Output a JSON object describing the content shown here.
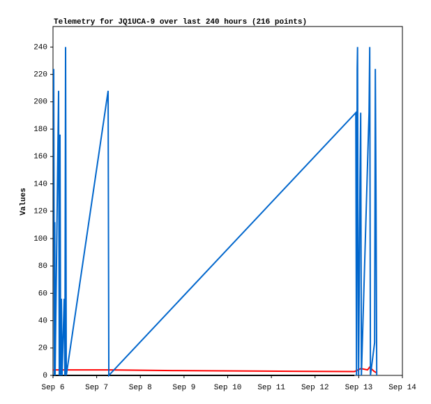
{
  "chart_data": {
    "type": "line",
    "title": "Telemetry for JQ1UCA-9 over last 240 hours (216 points)",
    "y_label": "Values",
    "xlim": [
      6,
      14
    ],
    "xticks": [
      {
        "value": 6,
        "label": "Sep 6"
      },
      {
        "value": 7,
        "label": "Sep 7"
      },
      {
        "value": 8,
        "label": "Sep 8"
      },
      {
        "value": 9,
        "label": "Sep 9"
      },
      {
        "value": 10,
        "label": "Sep 10"
      },
      {
        "value": 11,
        "label": "Sep 11"
      },
      {
        "value": 12,
        "label": "Sep 12"
      },
      {
        "value": 13,
        "label": "Sep 13"
      },
      {
        "value": 14,
        "label": "Sep 14"
      }
    ],
    "ylim": [
      0,
      255
    ],
    "yticks": [
      0,
      20,
      40,
      60,
      80,
      100,
      120,
      140,
      160,
      180,
      200,
      220,
      240
    ],
    "series": [
      {
        "color": "#000000",
        "x": [
          6.0,
          12.9
        ],
        "values": [
          0,
          0
        ]
      },
      {
        "color": "#ff0000",
        "x": [
          6.0,
          7.3,
          8.75,
          11.5,
          12.9,
          13.05,
          13.2,
          13.25,
          13.35,
          13.4
        ],
        "values": [
          4,
          4,
          3.5,
          3,
          2.8,
          5,
          4,
          6,
          3,
          2
        ]
      },
      {
        "color": "#0066cc",
        "x": [
          6.016,
          6.032,
          6.04,
          6.048,
          6.128,
          6.144,
          6.16,
          6.176,
          6.192,
          6.208,
          6.256,
          6.272,
          6.288,
          6.304,
          7.262,
          7.278,
          12.933,
          12.949,
          12.965,
          12.973,
          12.981,
          12.997,
          13.029,
          13.045,
          13.061,
          13.236,
          13.252,
          13.268,
          13.364,
          13.38,
          13.396,
          13.412
        ],
        "values": [
          224,
          0,
          112,
          0,
          208,
          0,
          176,
          0,
          56,
          0,
          56,
          0,
          240,
          0,
          208,
          0,
          192,
          0,
          224,
          240,
          120,
          0,
          144,
          192,
          0,
          192,
          240,
          0,
          24,
          224,
          128,
          0
        ]
      }
    ]
  }
}
